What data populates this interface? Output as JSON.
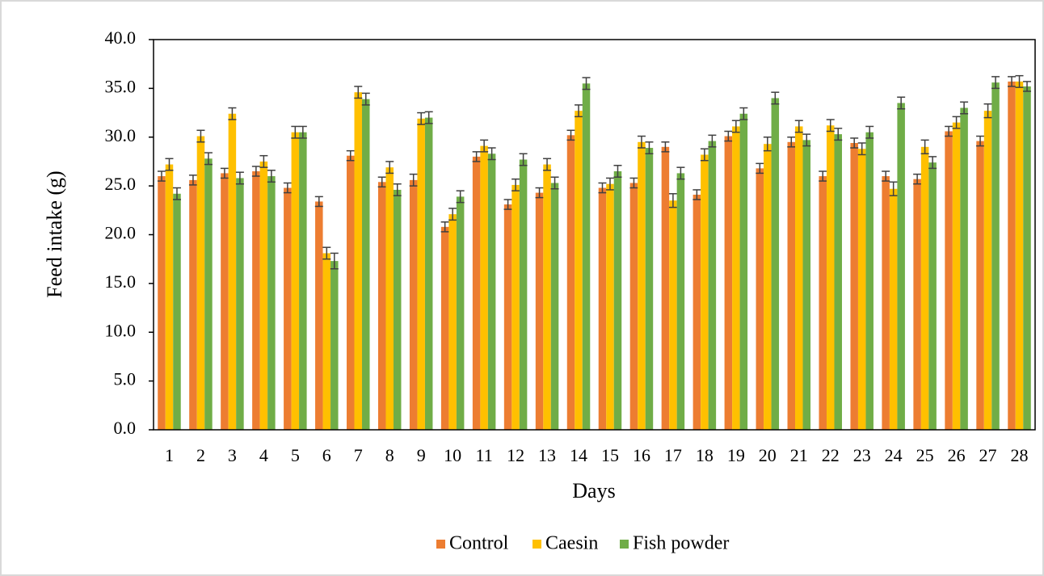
{
  "chart_data": {
    "type": "bar",
    "x_label": "Days",
    "y_label": "Feed intake (g)",
    "categories": [
      "1",
      "2",
      "3",
      "4",
      "5",
      "6",
      "7",
      "8",
      "9",
      "10",
      "11",
      "12",
      "13",
      "14",
      "15",
      "16",
      "17",
      "18",
      "19",
      "20",
      "21",
      "22",
      "23",
      "24",
      "25",
      "26",
      "27",
      "28"
    ],
    "series": [
      {
        "name": "Control",
        "color": "#ed7d31",
        "values": [
          26.0,
          25.6,
          26.3,
          26.5,
          24.8,
          23.4,
          28.1,
          25.4,
          25.6,
          20.8,
          28.0,
          23.1,
          24.3,
          30.2,
          24.8,
          25.3,
          29.0,
          24.1,
          30.1,
          26.8,
          29.5,
          26.0,
          29.4,
          26.0,
          25.7,
          30.6,
          29.6,
          35.7
        ],
        "errors": [
          0.5,
          0.5,
          0.5,
          0.5,
          0.5,
          0.5,
          0.5,
          0.5,
          0.6,
          0.5,
          0.5,
          0.5,
          0.5,
          0.5,
          0.5,
          0.5,
          0.5,
          0.5,
          0.5,
          0.5,
          0.5,
          0.5,
          0.5,
          0.5,
          0.5,
          0.5,
          0.5,
          0.5
        ]
      },
      {
        "name": "Caesin",
        "color": "#ffc000",
        "values": [
          27.2,
          30.1,
          32.4,
          27.5,
          30.5,
          18.1,
          34.6,
          26.9,
          31.9,
          22.1,
          29.1,
          25.1,
          27.2,
          32.7,
          25.2,
          29.5,
          23.5,
          28.2,
          31.1,
          29.3,
          31.1,
          31.2,
          28.8,
          24.7,
          29.0,
          31.5,
          32.7,
          35.7
        ],
        "errors": [
          0.6,
          0.6,
          0.6,
          0.6,
          0.6,
          0.6,
          0.6,
          0.6,
          0.6,
          0.6,
          0.6,
          0.6,
          0.6,
          0.6,
          0.6,
          0.6,
          0.7,
          0.6,
          0.6,
          0.7,
          0.6,
          0.6,
          0.6,
          0.7,
          0.7,
          0.6,
          0.7,
          0.6
        ]
      },
      {
        "name": "Fish powder",
        "color": "#70ad47",
        "values": [
          24.2,
          27.8,
          25.8,
          26.0,
          30.5,
          17.3,
          33.9,
          24.6,
          32.0,
          23.9,
          28.3,
          27.7,
          25.3,
          35.5,
          26.5,
          28.9,
          26.3,
          29.6,
          32.4,
          34.0,
          29.7,
          30.3,
          30.5,
          33.5,
          27.4,
          33.0,
          35.6,
          35.2
        ],
        "errors": [
          0.6,
          0.6,
          0.6,
          0.6,
          0.6,
          0.8,
          0.6,
          0.6,
          0.6,
          0.6,
          0.6,
          0.6,
          0.6,
          0.6,
          0.6,
          0.6,
          0.6,
          0.6,
          0.6,
          0.6,
          0.6,
          0.6,
          0.6,
          0.6,
          0.6,
          0.6,
          0.6,
          0.5
        ]
      }
    ],
    "ylim": [
      0,
      40
    ],
    "yticks": [
      {
        "value": 0,
        "label": "0.0"
      },
      {
        "value": 5,
        "label": "5.0"
      },
      {
        "value": 10,
        "label": "10.0"
      },
      {
        "value": 15,
        "label": "15.0"
      },
      {
        "value": 20,
        "label": "20.0"
      },
      {
        "value": 25,
        "label": "25.0"
      },
      {
        "value": 30,
        "label": "30.0"
      },
      {
        "value": 35,
        "label": "35.0"
      },
      {
        "value": 40,
        "label": "40.0"
      }
    ],
    "legend": "bottom"
  }
}
